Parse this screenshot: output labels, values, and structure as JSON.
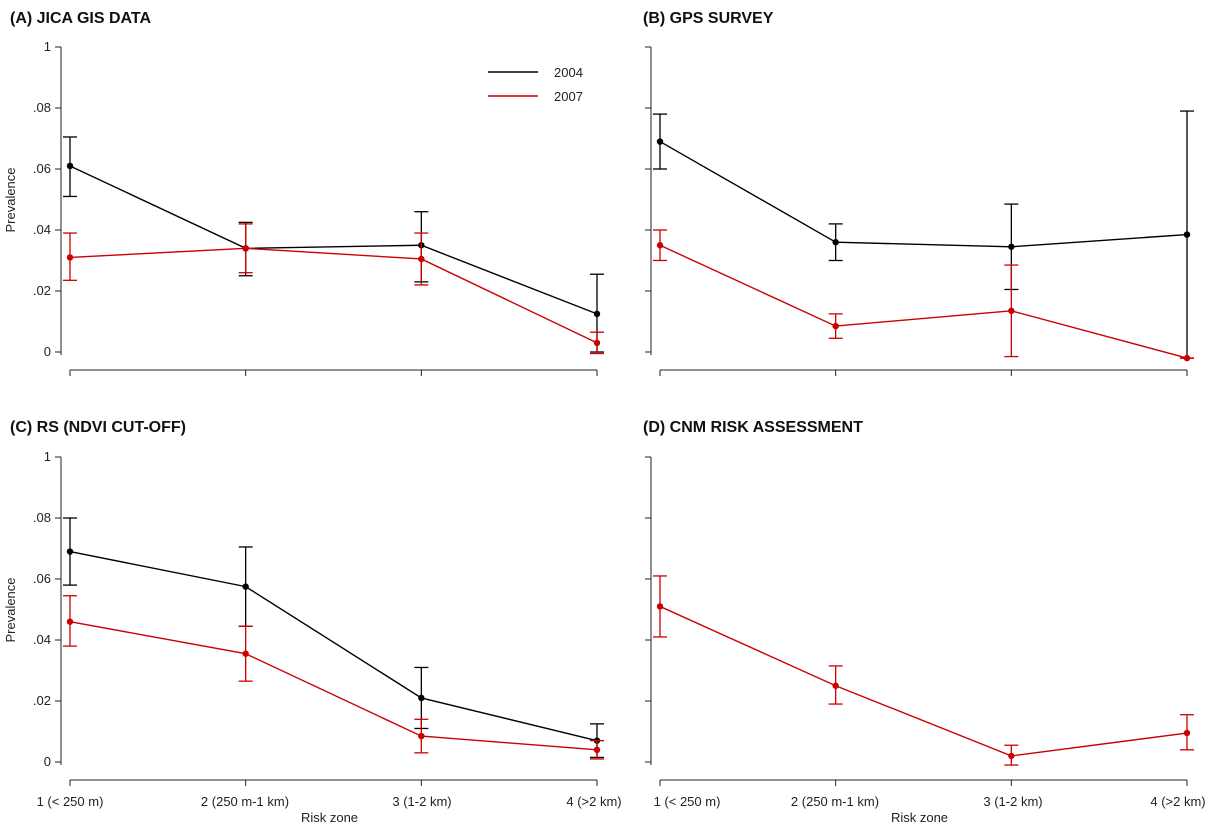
{
  "chart_data": [
    {
      "type": "line",
      "title": "(A) JICA GIS DATA",
      "ylabel": "Prevalence",
      "xlabel": "",
      "categories": [
        "1 (< 250 m)",
        "2 (250 m-1 km)",
        "3 (1-2 km)",
        "4 (>2 km)"
      ],
      "yticks": [
        "1",
        ".08",
        ".06",
        ".04",
        ".02",
        "0"
      ],
      "show_yticklabels": true,
      "show_xticklabels": false,
      "legend": {
        "position": "top-right",
        "entries": [
          "2004",
          "2007"
        ]
      },
      "series": [
        {
          "name": "2004",
          "color": "#000000",
          "values": [
            0.061,
            0.034,
            0.035,
            0.0125
          ],
          "ci_low": [
            0.051,
            0.025,
            0.023,
            0.0
          ],
          "ci_high": [
            0.0705,
            0.0425,
            0.046,
            0.0255
          ]
        },
        {
          "name": "2007",
          "color": "#cc0000",
          "values": [
            0.031,
            0.034,
            0.0305,
            0.003
          ],
          "ci_low": [
            0.0235,
            0.026,
            0.022,
            -0.0005
          ],
          "ci_high": [
            0.039,
            0.042,
            0.039,
            0.0065
          ]
        }
      ]
    },
    {
      "type": "line",
      "title": "(B) GPS SURVEY",
      "ylabel": "",
      "xlabel": "",
      "categories": [
        "1 (< 250 m)",
        "2 (250 m-1 km)",
        "3 (1-2 km)",
        "4 (>2 km)"
      ],
      "yticks": [
        "1",
        ".08",
        ".06",
        ".04",
        ".02",
        "0"
      ],
      "show_yticklabels": false,
      "show_xticklabels": false,
      "series": [
        {
          "name": "2004",
          "color": "#000000",
          "values": [
            0.069,
            0.036,
            0.0345,
            0.0385
          ],
          "ci_low": [
            0.06,
            0.03,
            0.0205,
            -0.002
          ],
          "ci_high": [
            0.078,
            0.042,
            0.0485,
            0.079
          ]
        },
        {
          "name": "2007",
          "color": "#cc0000",
          "values": [
            0.035,
            0.0085,
            0.0135,
            -0.002
          ],
          "ci_low": [
            0.03,
            0.0045,
            -0.0015,
            -0.002
          ],
          "ci_high": [
            0.04,
            0.0125,
            0.0285,
            -0.002
          ]
        }
      ]
    },
    {
      "type": "line",
      "title": "(C) RS (NDVI CUT-OFF)",
      "ylabel": "Prevalence",
      "xlabel": "Risk zone",
      "categories": [
        "1 (< 250 m)",
        "2 (250 m-1 km)",
        "3 (1-2 km)",
        "4 (>2 km)"
      ],
      "yticks": [
        "1",
        ".08",
        ".06",
        ".04",
        ".02",
        "0"
      ],
      "show_yticklabels": true,
      "show_xticklabels": true,
      "series": [
        {
          "name": "2004",
          "color": "#000000",
          "values": [
            0.069,
            0.0575,
            0.021,
            0.007
          ],
          "ci_low": [
            0.058,
            0.0445,
            0.011,
            0.0015
          ],
          "ci_high": [
            0.08,
            0.0705,
            0.031,
            0.0125
          ]
        },
        {
          "name": "2007",
          "color": "#cc0000",
          "values": [
            0.046,
            0.0355,
            0.0085,
            0.004
          ],
          "ci_low": [
            0.038,
            0.0265,
            0.003,
            0.001
          ],
          "ci_high": [
            0.0545,
            0.0445,
            0.014,
            0.007
          ]
        }
      ]
    },
    {
      "type": "line",
      "title": "(D) CNM RISK ASSESSMENT",
      "ylabel": "",
      "xlabel": "Risk zone",
      "categories": [
        "1 (< 250 m)",
        "2 (250 m-1 km)",
        "3 (1-2 km)",
        "4 (>2 km)"
      ],
      "yticks": [
        "1",
        ".08",
        ".06",
        ".04",
        ".02",
        "0"
      ],
      "show_yticklabels": false,
      "show_xticklabels": true,
      "series": [
        {
          "name": "2007",
          "color": "#cc0000",
          "values": [
            0.051,
            0.025,
            0.002,
            0.0095
          ],
          "ci_low": [
            0.041,
            0.019,
            -0.001,
            0.004
          ],
          "ci_high": [
            0.061,
            0.0315,
            0.0055,
            0.0155
          ]
        }
      ]
    }
  ]
}
